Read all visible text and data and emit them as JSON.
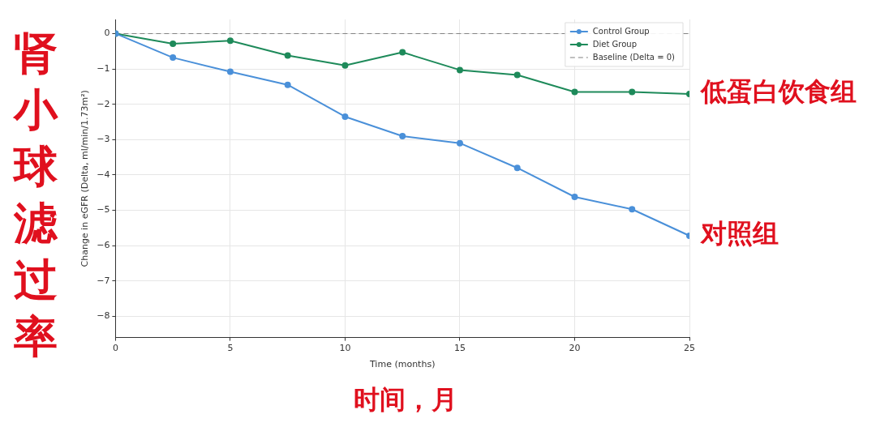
{
  "chart_data": {
    "type": "line",
    "xlabel": "Time (months)",
    "ylabel": "Change in eGFR (Delta, ml/min/1.73m²)",
    "x": [
      0,
      2.5,
      5,
      7.5,
      10,
      12.5,
      15,
      17.5,
      20,
      22.5,
      25
    ],
    "series": [
      {
        "name": "Control Group",
        "color": "#4a90d9",
        "values": [
          0,
          -0.68,
          -1.08,
          -1.45,
          -2.35,
          -2.9,
          -3.1,
          -3.8,
          -4.62,
          -4.97,
          -5.72
        ]
      },
      {
        "name": "Diet Group",
        "color": "#1e8a5a",
        "values": [
          0,
          -0.29,
          -0.2,
          -0.62,
          -0.9,
          -0.53,
          -1.03,
          -1.17,
          -1.65,
          -1.65,
          -1.71
        ]
      }
    ],
    "xlim": [
      0,
      25
    ],
    "xticks": [
      0,
      5,
      10,
      15,
      20,
      25
    ],
    "ylim": [
      -8.6,
      0.4
    ],
    "yticks": [
      0,
      -1,
      -2,
      -3,
      -4,
      -5,
      -6,
      -7,
      -8
    ],
    "ref_lines": [
      {
        "axis": "y",
        "value": 0,
        "label": "Baseline (Delta = 0)",
        "color": "#808080",
        "line_style": "dashed"
      }
    ],
    "annotations": [
      "肾小球滤过率",
      "时间，月",
      {
        "text": "低蛋白饮食组",
        "x": 25,
        "y": -1.71
      },
      {
        "text": "对照组",
        "x": 25,
        "y": -5.72
      }
    ],
    "grid": true,
    "legend": "top right",
    "marker": "circle",
    "line_style": "solid"
  }
}
